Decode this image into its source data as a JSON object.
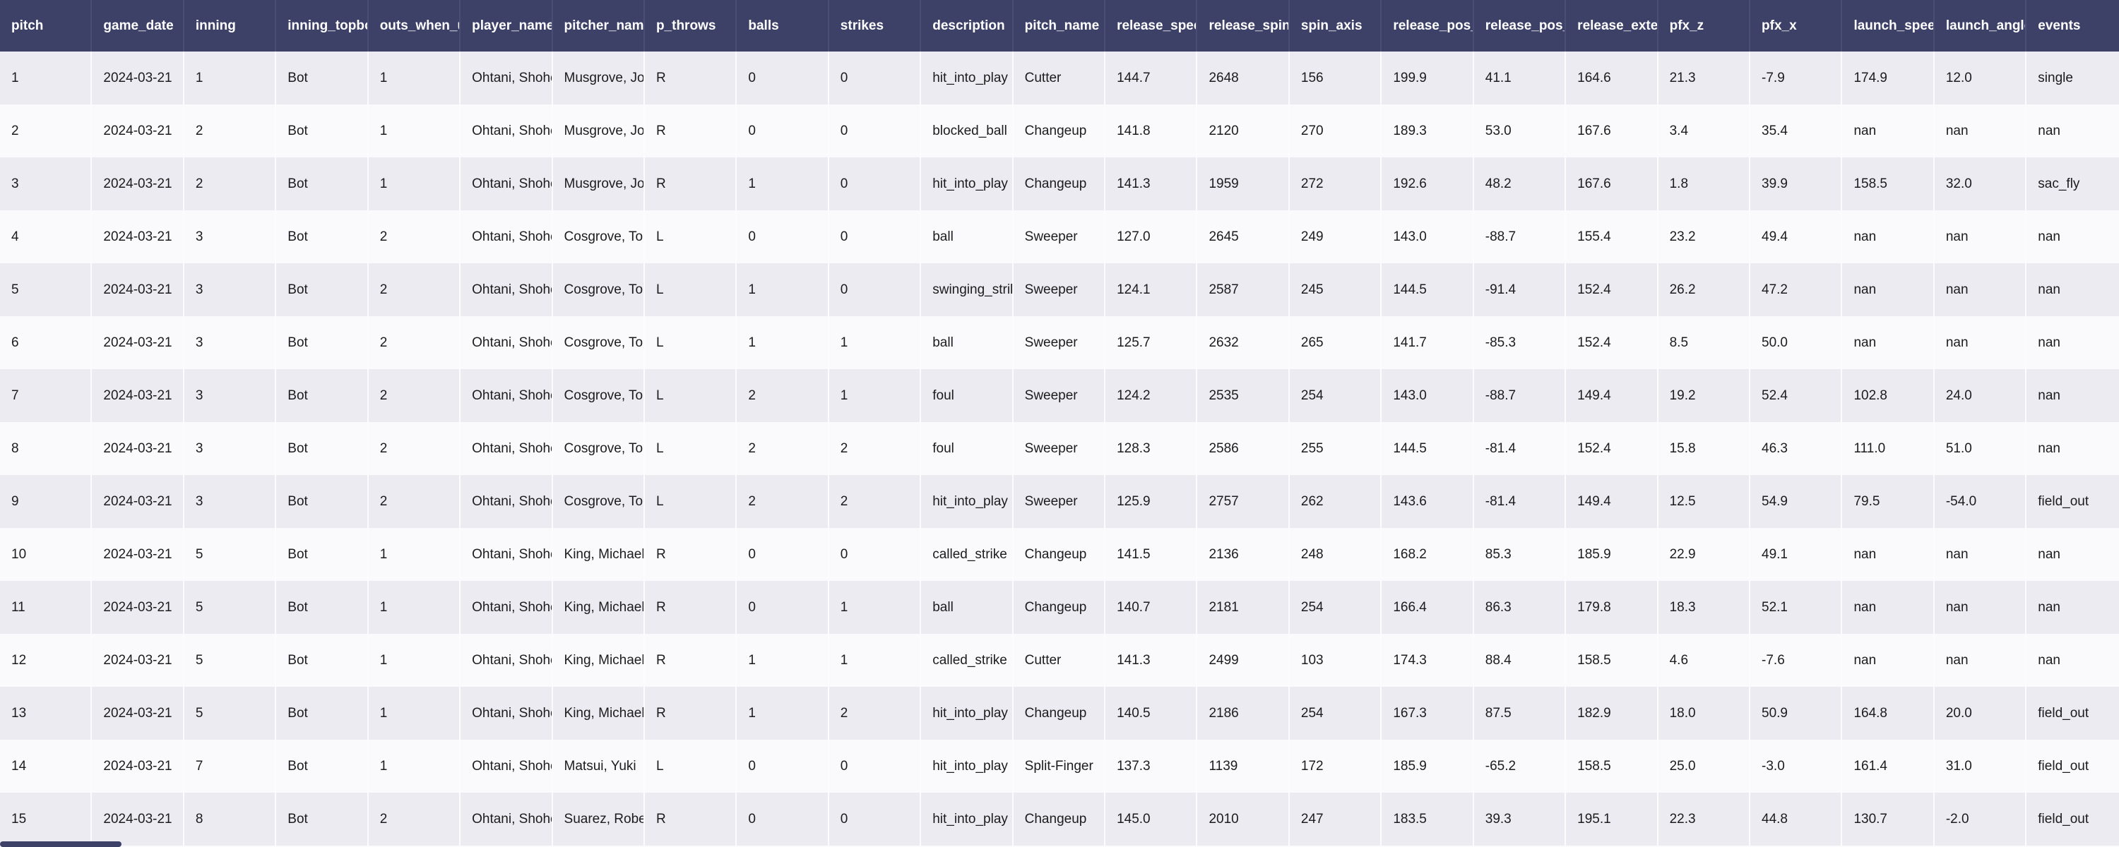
{
  "table": {
    "columns": [
      "pitch",
      "game_date",
      "inning",
      "inning_topbot",
      "outs_when_up",
      "player_name",
      "pitcher_name",
      "p_throws",
      "balls",
      "strikes",
      "description",
      "pitch_name",
      "release_speed",
      "release_spin_rate",
      "spin_axis",
      "release_pos_z",
      "release_pos_x",
      "release_extension",
      "pfx_z",
      "pfx_x",
      "launch_speed",
      "launch_angle",
      "events"
    ],
    "rows": [
      [
        "1",
        "2024-03-21",
        "1",
        "Bot",
        "1",
        "Ohtani, Shohei",
        "Musgrove, Joe",
        "R",
        "0",
        "0",
        "hit_into_play",
        "Cutter",
        "144.7",
        "2648",
        "156",
        "199.9",
        "41.1",
        "164.6",
        "21.3",
        "-7.9",
        "174.9",
        "12.0",
        "single"
      ],
      [
        "2",
        "2024-03-21",
        "2",
        "Bot",
        "1",
        "Ohtani, Shohei",
        "Musgrove, Joe",
        "R",
        "0",
        "0",
        "blocked_ball",
        "Changeup",
        "141.8",
        "2120",
        "270",
        "189.3",
        "53.0",
        "167.6",
        "3.4",
        "35.4",
        "nan",
        "nan",
        "nan"
      ],
      [
        "3",
        "2024-03-21",
        "2",
        "Bot",
        "1",
        "Ohtani, Shohei",
        "Musgrove, Joe",
        "R",
        "1",
        "0",
        "hit_into_play",
        "Changeup",
        "141.3",
        "1959",
        "272",
        "192.6",
        "48.2",
        "167.6",
        "1.8",
        "39.9",
        "158.5",
        "32.0",
        "sac_fly"
      ],
      [
        "4",
        "2024-03-21",
        "3",
        "Bot",
        "2",
        "Ohtani, Shohei",
        "Cosgrove, Tom",
        "L",
        "0",
        "0",
        "ball",
        "Sweeper",
        "127.0",
        "2645",
        "249",
        "143.0",
        "-88.7",
        "155.4",
        "23.2",
        "49.4",
        "nan",
        "nan",
        "nan"
      ],
      [
        "5",
        "2024-03-21",
        "3",
        "Bot",
        "2",
        "Ohtani, Shohei",
        "Cosgrove, Tom",
        "L",
        "1",
        "0",
        "swinging_strike",
        "Sweeper",
        "124.1",
        "2587",
        "245",
        "144.5",
        "-91.4",
        "152.4",
        "26.2",
        "47.2",
        "nan",
        "nan",
        "nan"
      ],
      [
        "6",
        "2024-03-21",
        "3",
        "Bot",
        "2",
        "Ohtani, Shohei",
        "Cosgrove, Tom",
        "L",
        "1",
        "1",
        "ball",
        "Sweeper",
        "125.7",
        "2632",
        "265",
        "141.7",
        "-85.3",
        "152.4",
        "8.5",
        "50.0",
        "nan",
        "nan",
        "nan"
      ],
      [
        "7",
        "2024-03-21",
        "3",
        "Bot",
        "2",
        "Ohtani, Shohei",
        "Cosgrove, Tom",
        "L",
        "2",
        "1",
        "foul",
        "Sweeper",
        "124.2",
        "2535",
        "254",
        "143.0",
        "-88.7",
        "149.4",
        "19.2",
        "52.4",
        "102.8",
        "24.0",
        "nan"
      ],
      [
        "8",
        "2024-03-21",
        "3",
        "Bot",
        "2",
        "Ohtani, Shohei",
        "Cosgrove, Tom",
        "L",
        "2",
        "2",
        "foul",
        "Sweeper",
        "128.3",
        "2586",
        "255",
        "144.5",
        "-81.4",
        "152.4",
        "15.8",
        "46.3",
        "111.0",
        "51.0",
        "nan"
      ],
      [
        "9",
        "2024-03-21",
        "3",
        "Bot",
        "2",
        "Ohtani, Shohei",
        "Cosgrove, Tom",
        "L",
        "2",
        "2",
        "hit_into_play",
        "Sweeper",
        "125.9",
        "2757",
        "262",
        "143.6",
        "-81.4",
        "149.4",
        "12.5",
        "54.9",
        "79.5",
        "-54.0",
        "field_out"
      ],
      [
        "10",
        "2024-03-21",
        "5",
        "Bot",
        "1",
        "Ohtani, Shohei",
        "King, Michael",
        "R",
        "0",
        "0",
        "called_strike",
        "Changeup",
        "141.5",
        "2136",
        "248",
        "168.2",
        "85.3",
        "185.9",
        "22.9",
        "49.1",
        "nan",
        "nan",
        "nan"
      ],
      [
        "11",
        "2024-03-21",
        "5",
        "Bot",
        "1",
        "Ohtani, Shohei",
        "King, Michael",
        "R",
        "0",
        "1",
        "ball",
        "Changeup",
        "140.7",
        "2181",
        "254",
        "166.4",
        "86.3",
        "179.8",
        "18.3",
        "52.1",
        "nan",
        "nan",
        "nan"
      ],
      [
        "12",
        "2024-03-21",
        "5",
        "Bot",
        "1",
        "Ohtani, Shohei",
        "King, Michael",
        "R",
        "1",
        "1",
        "called_strike",
        "Cutter",
        "141.3",
        "2499",
        "103",
        "174.3",
        "88.4",
        "158.5",
        "4.6",
        "-7.6",
        "nan",
        "nan",
        "nan"
      ],
      [
        "13",
        "2024-03-21",
        "5",
        "Bot",
        "1",
        "Ohtani, Shohei",
        "King, Michael",
        "R",
        "1",
        "2",
        "hit_into_play",
        "Changeup",
        "140.5",
        "2186",
        "254",
        "167.3",
        "87.5",
        "182.9",
        "18.0",
        "50.9",
        "164.8",
        "20.0",
        "field_out"
      ],
      [
        "14",
        "2024-03-21",
        "7",
        "Bot",
        "1",
        "Ohtani, Shohei",
        "Matsui, Yuki",
        "L",
        "0",
        "0",
        "hit_into_play",
        "Split-Finger",
        "137.3",
        "1139",
        "172",
        "185.9",
        "-65.2",
        "158.5",
        "25.0",
        "-3.0",
        "161.4",
        "31.0",
        "field_out"
      ],
      [
        "15",
        "2024-03-21",
        "8",
        "Bot",
        "2",
        "Ohtani, Shohei",
        "Suarez, Robert",
        "R",
        "0",
        "0",
        "hit_into_play",
        "Changeup",
        "145.0",
        "2010",
        "247",
        "183.5",
        "39.3",
        "195.1",
        "22.3",
        "44.8",
        "130.7",
        "-2.0",
        "field_out"
      ]
    ]
  },
  "colors": {
    "header_bg": "#3d4168",
    "header_text": "#ffffff",
    "row_odd_bg": "#ebebf1",
    "row_even_bg": "#fafafd",
    "cell_separator": "#fcfcfe",
    "text": "#1c1c1e"
  }
}
